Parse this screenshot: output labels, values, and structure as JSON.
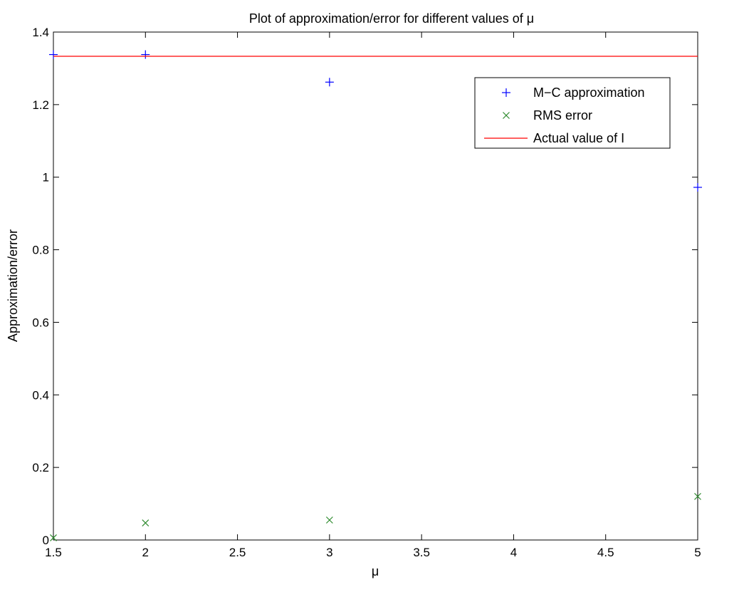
{
  "chart_data": {
    "type": "scatter",
    "title": "Plot of approximation/error for different values of μ",
    "xlabel": "μ",
    "ylabel": "Approximation/error",
    "xlim": [
      1.5,
      5
    ],
    "ylim": [
      0,
      1.4
    ],
    "xticks": [
      "1.5",
      "2",
      "2.5",
      "3",
      "3.5",
      "4",
      "4.5",
      "5"
    ],
    "yticks": [
      "0",
      "0.2",
      "0.4",
      "0.6",
      "0.8",
      "1",
      "1.2",
      "1.4"
    ],
    "grid": false,
    "legend_position": "top-right",
    "series": [
      {
        "name": "M−C approximation",
        "marker": "plus",
        "color": "#0000ff",
        "x": [
          1.5,
          2,
          3,
          5
        ],
        "y": [
          1.338,
          1.338,
          1.262,
          0.972
        ]
      },
      {
        "name": "RMS error",
        "marker": "x",
        "color": "#2e8b2e",
        "x": [
          1.5,
          2,
          3,
          5
        ],
        "y": [
          0.006,
          0.047,
          0.055,
          0.12
        ]
      },
      {
        "name": "Actual value of I",
        "marker": "line",
        "color": "#ff0000",
        "x": [
          1.5,
          5
        ],
        "y": [
          1.3333,
          1.3333
        ]
      }
    ]
  }
}
